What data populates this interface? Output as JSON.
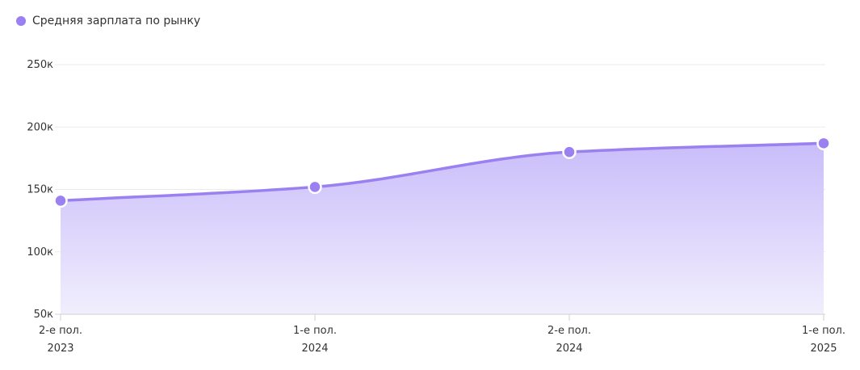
{
  "chart_data": {
    "type": "area",
    "series": [
      {
        "name": "Средняя зарплата по рынку",
        "values": [
          141000,
          152000,
          180000,
          187000
        ]
      }
    ],
    "categories": [
      [
        "2-е пол.",
        "2023"
      ],
      [
        "1-е пол.",
        "2024"
      ],
      [
        "2-е пол.",
        "2024"
      ],
      [
        "1-е пол.",
        "2025"
      ]
    ],
    "y_ticks": [
      {
        "value": 50000,
        "label": "50к"
      },
      {
        "value": 100000,
        "label": "100к"
      },
      {
        "value": 150000,
        "label": "150к"
      },
      {
        "value": 200000,
        "label": "200к"
      },
      {
        "value": 250000,
        "label": "250к"
      }
    ],
    "ylim": [
      50000,
      250000
    ],
    "grid": true,
    "legend_position": "top-left",
    "colors": {
      "line": "#9a80f0",
      "point": "#9a80f0",
      "point_stroke": "#ffffff",
      "area_top": "#c9bdfa",
      "area_bottom": "#f1eefd",
      "grid": "#ebebeb",
      "axis": "#d0d0d0"
    }
  }
}
